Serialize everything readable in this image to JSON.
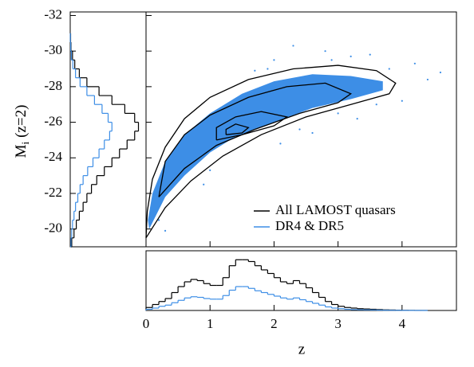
{
  "chart_data": [
    {
      "type": "scatter",
      "xlabel": "z",
      "ylabel": [
        "M",
        "i",
        "(z=2)"
      ],
      "xlim": [
        0,
        4.85
      ],
      "ylim": [
        -19,
        -32.2
      ],
      "xticks": [
        0,
        1,
        2,
        3,
        4
      ],
      "yticks": [
        -32,
        -30,
        -28,
        -26,
        -24,
        -22,
        -20
      ],
      "legend": "lower right",
      "series": [
        {
          "name": "All LAMOST quasars",
          "color": "#000000",
          "contours": [
            {
              "x": [
                0.0,
                0.3,
                0.7,
                1.2,
                1.8,
                2.5,
                3.2,
                3.8,
                3.9,
                3.6,
                3.0,
                2.3,
                1.6,
                1.0,
                0.6,
                0.3,
                0.1,
                0.02,
                0.0
              ],
              "y": [
                -19.5,
                -21.2,
                -22.7,
                -24.1,
                -25.3,
                -26.3,
                -27.0,
                -27.6,
                -28.2,
                -28.9,
                -29.2,
                -29.0,
                -28.4,
                -27.4,
                -26.2,
                -24.6,
                -22.8,
                -21,
                -19.5
              ]
            },
            {
              "x": [
                0.2,
                0.6,
                1.1,
                1.7,
                2.4,
                3.0,
                3.2,
                2.8,
                2.2,
                1.6,
                1.0,
                0.6,
                0.3,
                0.2
              ],
              "y": [
                -21.8,
                -23.4,
                -24.7,
                -25.6,
                -26.5,
                -27.1,
                -27.6,
                -28.2,
                -28.0,
                -27.4,
                -26.4,
                -25.3,
                -23.8,
                -21.8
              ]
            },
            {
              "x": [
                1.1,
                1.5,
                2.0,
                2.2,
                1.8,
                1.4,
                1.1,
                1.1
              ],
              "y": [
                -25.0,
                -25.3,
                -25.8,
                -26.3,
                -26.6,
                -26.3,
                -25.7,
                -25.0
              ]
            },
            {
              "x": [
                1.25,
                1.5,
                1.6,
                1.4,
                1.25,
                1.25
              ],
              "y": [
                -25.3,
                -25.4,
                -25.7,
                -25.9,
                -25.6,
                -25.3
              ]
            }
          ]
        },
        {
          "name": "DR4 & DR5",
          "color": "#3d8ee6",
          "region": {
            "x": [
              0.05,
              0.3,
              0.6,
              1.0,
              1.4,
              2.0,
              2.6,
              3.2,
              3.7,
              3.7,
              3.2,
              2.6,
              2.0,
              1.5,
              1.0,
              0.6,
              0.3,
              0.1,
              0.03
            ],
            "y": [
              -20,
              -21.8,
              -23,
              -24.3,
              -25.2,
              -26,
              -26.8,
              -27.3,
              -27.8,
              -28.3,
              -28.6,
              -28.7,
              -28.3,
              -27.6,
              -26.5,
              -25.3,
              -23.8,
              -22,
              -20.5
            ]
          },
          "x": [
            2.3,
            3.5,
            4.2,
            2.0,
            3.2,
            2.8,
            1.7,
            4.4,
            4.0,
            3.0,
            3.3,
            2.4,
            2.1,
            1.0,
            0.2,
            0.3,
            1.3,
            3.8,
            4.6,
            2.6,
            0.9,
            3.6,
            1.9,
            2.9
          ],
          "y": [
            -30.3,
            -29.8,
            -29.3,
            -29.5,
            -29.7,
            -30.0,
            -28.9,
            -28.4,
            -27.2,
            -26.5,
            -26.2,
            -25.6,
            -24.8,
            -23.3,
            -20.5,
            -19.9,
            -26.8,
            -29.0,
            -28.8,
            -25.4,
            -22.5,
            -27.0,
            -29.0,
            -29.5
          ]
        }
      ]
    },
    {
      "type": "histogram",
      "orientation": "horizontal",
      "xlim": [
        0,
        1
      ],
      "bins": [
        -19,
        -19.5,
        -20,
        -20.5,
        -21,
        -21.5,
        -22,
        -22.5,
        -23,
        -23.5,
        -24,
        -24.5,
        -25,
        -25.5,
        -26,
        -26.5,
        -27,
        -27.5,
        -28,
        -28.5,
        -29,
        -29.5,
        -30,
        -30.5,
        -31
      ],
      "series": [
        {
          "color": "#000000",
          "values": [
            0.02,
            0.05,
            0.08,
            0.12,
            0.17,
            0.22,
            0.28,
            0.35,
            0.45,
            0.55,
            0.65,
            0.75,
            0.85,
            0.9,
            0.85,
            0.72,
            0.55,
            0.38,
            0.22,
            0.12,
            0.06,
            0.03,
            0.01,
            0.005
          ]
        },
        {
          "color": "#3d8ee6",
          "values": [
            0.01,
            0.02,
            0.03,
            0.05,
            0.07,
            0.1,
            0.13,
            0.17,
            0.23,
            0.3,
            0.38,
            0.45,
            0.52,
            0.55,
            0.5,
            0.42,
            0.32,
            0.22,
            0.13,
            0.07,
            0.035,
            0.015,
            0.006,
            0.002
          ]
        }
      ]
    },
    {
      "type": "histogram",
      "orientation": "vertical",
      "ylim": [
        0,
        1
      ],
      "bins": [
        0,
        0.1,
        0.2,
        0.3,
        0.4,
        0.5,
        0.6,
        0.7,
        0.8,
        0.9,
        1.0,
        1.1,
        1.2,
        1.3,
        1.4,
        1.5,
        1.6,
        1.7,
        1.8,
        1.9,
        2.0,
        2.1,
        2.2,
        2.3,
        2.4,
        2.5,
        2.6,
        2.7,
        2.8,
        2.9,
        3.0,
        3.1,
        3.2,
        3.3,
        3.4,
        3.5,
        3.6,
        3.7,
        3.8,
        3.9,
        4.0,
        4.1,
        4.2,
        4.3,
        4.4
      ],
      "series": [
        {
          "color": "#000000",
          "values": [
            0.05,
            0.1,
            0.15,
            0.2,
            0.3,
            0.4,
            0.48,
            0.52,
            0.5,
            0.45,
            0.42,
            0.42,
            0.55,
            0.75,
            0.85,
            0.85,
            0.82,
            0.75,
            0.68,
            0.62,
            0.55,
            0.48,
            0.45,
            0.5,
            0.45,
            0.38,
            0.3,
            0.22,
            0.15,
            0.1,
            0.07,
            0.05,
            0.04,
            0.03,
            0.025,
            0.02,
            0.015,
            0.01,
            0.008,
            0.005,
            0.003,
            0.002,
            0.001,
            0.001
          ]
        },
        {
          "color": "#3d8ee6",
          "values": [
            0.02,
            0.04,
            0.07,
            0.09,
            0.13,
            0.17,
            0.21,
            0.23,
            0.22,
            0.2,
            0.19,
            0.19,
            0.25,
            0.34,
            0.4,
            0.4,
            0.37,
            0.33,
            0.3,
            0.27,
            0.24,
            0.21,
            0.19,
            0.21,
            0.18,
            0.15,
            0.12,
            0.09,
            0.06,
            0.04,
            0.03,
            0.02,
            0.015,
            0.012,
            0.01,
            0.008,
            0.006,
            0.004,
            0.003,
            0.002,
            0.001,
            0.001,
            0.0005,
            0.0005
          ]
        }
      ]
    }
  ]
}
